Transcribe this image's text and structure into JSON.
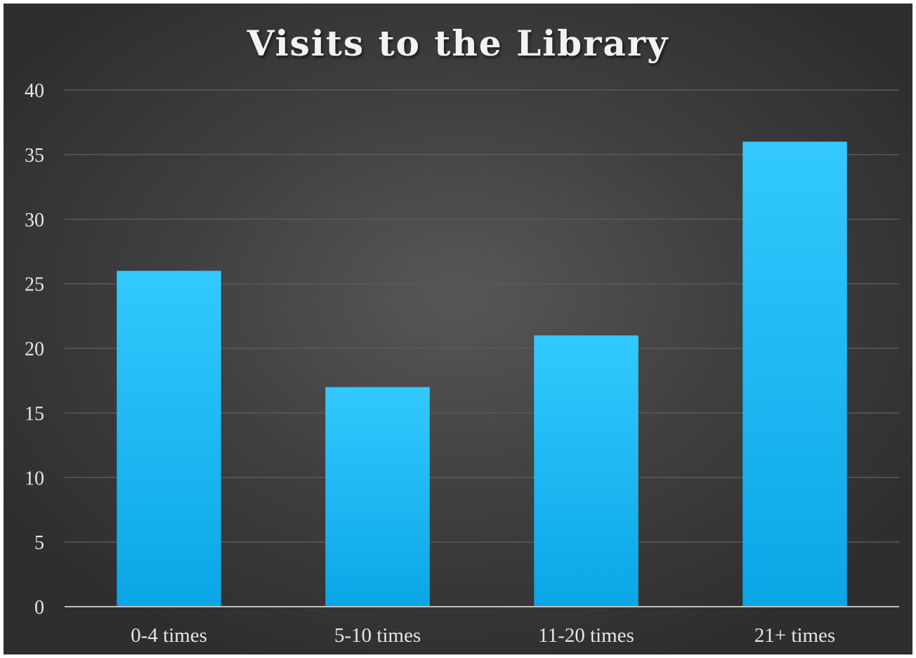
{
  "chart_data": {
    "type": "bar",
    "title": "Visits to the Library",
    "xlabel": "",
    "ylabel": "",
    "categories": [
      "0-4 times",
      "5-10 times",
      "11-20 times",
      "21+ times"
    ],
    "values": [
      26,
      17,
      21,
      36
    ],
    "ylim": [
      0,
      40
    ],
    "yticks": [
      0,
      5,
      10,
      15,
      20,
      25,
      30,
      35,
      40
    ],
    "grid": true,
    "legend": "none",
    "colors": {
      "bar_top": "#33c9ff",
      "bar_bottom": "#0aa6e6",
      "grid": "#5a5a5a",
      "axis": "#bfbfbf",
      "text": "#e6e6e6"
    }
  }
}
